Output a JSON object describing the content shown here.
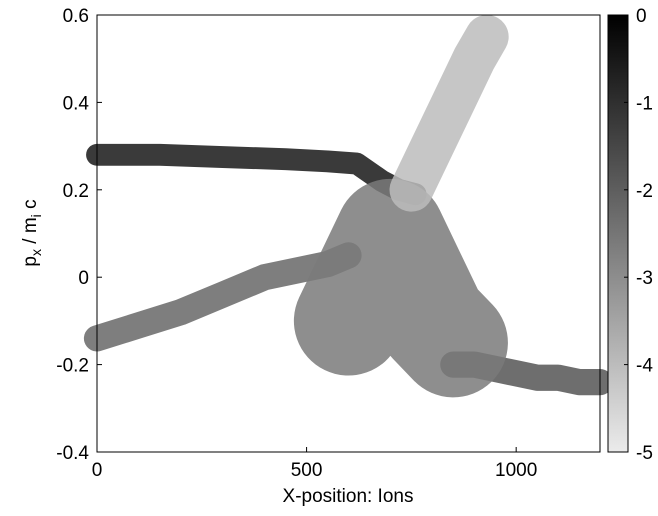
{
  "chart_data": {
    "type": "density",
    "xlabel": "X-position: Ions",
    "ylabel": {
      "p": "p",
      "sub1": "x",
      "mid": " / m",
      "sub2": "i",
      "end": " c"
    },
    "xlim": [
      0,
      1200
    ],
    "xticks": [
      0,
      500,
      1000
    ],
    "ylim": [
      -0.4,
      0.6
    ],
    "yticks": [
      -0.4,
      -0.2,
      0,
      0.2,
      0.4,
      0.6
    ],
    "clim": [
      -5,
      0
    ],
    "cticks": [
      0,
      -1,
      -2,
      -3,
      -4,
      -5
    ],
    "series": [
      {
        "x": [
          0,
          150,
          300,
          450,
          550,
          620,
          680,
          720,
          760
        ],
        "values": [
          0.28,
          0.28,
          0.275,
          0.27,
          0.265,
          0.26,
          0.22,
          0.2,
          0.19
        ],
        "spread": 0.05,
        "level": -0.5
      },
      {
        "x": [
          0,
          100,
          200,
          300,
          400,
          450,
          500,
          550,
          600
        ],
        "values": [
          -0.14,
          -0.11,
          -0.08,
          -0.04,
          0.0,
          0.01,
          0.02,
          0.03,
          0.05
        ],
        "spread": 0.06,
        "level": -2.2
      },
      {
        "x": [
          850,
          900,
          950,
          1000,
          1050,
          1100,
          1150,
          1200
        ],
        "values": [
          -0.2,
          -0.2,
          -0.21,
          -0.22,
          -0.23,
          -0.23,
          -0.24,
          -0.24
        ],
        "spread": 0.06,
        "level": -1.8
      },
      {
        "x": [
          600,
          650,
          700,
          750,
          800,
          850
        ],
        "values": [
          -0.1,
          0,
          0.1,
          0.0,
          -0.1,
          -0.15
        ],
        "spread": 0.25,
        "level": -2.6
      },
      {
        "x": [
          750,
          800,
          850,
          900,
          930
        ],
        "values": [
          0.2,
          0.3,
          0.4,
          0.5,
          0.55
        ],
        "spread": 0.1,
        "level": -4
      }
    ]
  }
}
